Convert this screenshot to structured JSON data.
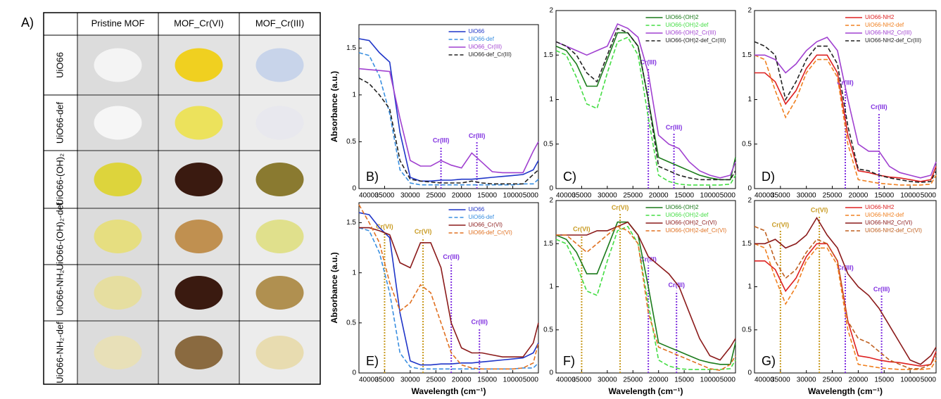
{
  "table": {
    "label": "A)",
    "header": [
      "Pristine MOF",
      "MOF_Cr(VI)",
      "MOF_Cr(III)"
    ],
    "rows": [
      "UiO66",
      "UiO66-def",
      "UiO66-(OH)₂",
      "UiO66-(OH)₂-def",
      "UiO66-NH₂",
      "UiO66-NH₂-def"
    ]
  },
  "chart_data": [
    {
      "type": "line",
      "label": "B)",
      "ylabel": "Absorbance (a.u.)",
      "x": [
        40000,
        38000,
        36000,
        34000,
        32000,
        30000,
        28000,
        26000,
        24000,
        22000,
        20000,
        18000,
        16000,
        14000,
        12000,
        10000,
        8000,
        6000,
        5000
      ],
      "xlim": [
        40000,
        5000
      ],
      "xticks": [
        40000,
        35000,
        30000,
        25000,
        20000,
        15000,
        10000,
        5000
      ],
      "ylim": [
        0,
        1.75
      ],
      "yticks": [
        0,
        0.5,
        1,
        1.5
      ],
      "series": [
        {
          "name": "UiO66",
          "color": "#1f35c8",
          "dash": false,
          "values": [
            1.6,
            1.58,
            1.45,
            1.35,
            0.6,
            0.12,
            0.08,
            0.08,
            0.09,
            0.09,
            0.1,
            0.1,
            0.11,
            0.12,
            0.13,
            0.14,
            0.15,
            0.2,
            0.3
          ]
        },
        {
          "name": "UiO66-def",
          "color": "#3a8fe0",
          "dash": true,
          "values": [
            1.45,
            1.42,
            1.2,
            0.8,
            0.2,
            0.06,
            0.04,
            0.04,
            0.04,
            0.04,
            0.04,
            0.04,
            0.04,
            0.04,
            0.04,
            0.04,
            0.05,
            0.05,
            0.1
          ]
        },
        {
          "name": "UiO66_Cr(III)",
          "color": "#a040d0",
          "dash": false,
          "values": [
            1.28,
            1.27,
            1.26,
            1.25,
            0.75,
            0.3,
            0.24,
            0.24,
            0.3,
            0.25,
            0.22,
            0.38,
            0.28,
            0.18,
            0.17,
            0.17,
            0.17,
            0.4,
            0.5
          ]
        },
        {
          "name": "UiO66-def_Cr(III)",
          "color": "#222222",
          "dash": true,
          "values": [
            1.18,
            1.12,
            1.0,
            0.85,
            0.3,
            0.1,
            0.08,
            0.07,
            0.06,
            0.06,
            0.06,
            0.08,
            0.06,
            0.05,
            0.05,
            0.05,
            0.05,
            0.15,
            0.2
          ]
        }
      ],
      "annotations": [
        {
          "text": "Cr(III)",
          "x": 24000,
          "y": 0.45,
          "color": "#8030e0"
        },
        {
          "text": "Cr(III)",
          "x": 17000,
          "y": 0.5,
          "color": "#8030e0"
        }
      ]
    },
    {
      "type": "line",
      "label": "C)",
      "x": [
        40000,
        38000,
        36000,
        34000,
        32000,
        30000,
        28000,
        26000,
        24000,
        22000,
        20000,
        18000,
        16000,
        14000,
        12000,
        10000,
        8000,
        6000,
        5000
      ],
      "xlim": [
        40000,
        5000
      ],
      "xticks": [
        40000,
        35000,
        30000,
        25000,
        20000,
        15000,
        10000,
        5000
      ],
      "ylim": [
        0,
        2
      ],
      "yticks": [
        0,
        0.5,
        1,
        1.5,
        2
      ],
      "series": [
        {
          "name": "UiO66-(OH)2",
          "color": "#1a7a1a",
          "dash": false,
          "values": [
            1.6,
            1.55,
            1.4,
            1.15,
            1.15,
            1.45,
            1.75,
            1.75,
            1.6,
            1.0,
            0.35,
            0.3,
            0.25,
            0.2,
            0.15,
            0.12,
            0.1,
            0.1,
            0.35
          ]
        },
        {
          "name": "UiO66-(OH)2-def",
          "color": "#44dd44",
          "dash": true,
          "values": [
            1.55,
            1.5,
            1.25,
            0.95,
            0.9,
            1.3,
            1.65,
            1.7,
            1.5,
            0.8,
            0.15,
            0.08,
            0.05,
            0.04,
            0.04,
            0.04,
            0.04,
            0.05,
            0.15
          ]
        },
        {
          "name": "UiO66-(OH)2_Cr(III)",
          "color": "#a040d0",
          "dash": false,
          "values": [
            1.65,
            1.6,
            1.55,
            1.5,
            1.55,
            1.6,
            1.85,
            1.8,
            1.7,
            1.3,
            0.6,
            0.5,
            0.45,
            0.3,
            0.2,
            0.15,
            0.12,
            0.15,
            0.3
          ]
        },
        {
          "name": "UiO66-(OH)2-def_Cr(III)",
          "color": "#222222",
          "dash": true,
          "values": [
            1.65,
            1.6,
            1.5,
            1.3,
            1.2,
            1.5,
            1.8,
            1.75,
            1.6,
            1.0,
            0.25,
            0.2,
            0.15,
            0.12,
            0.1,
            0.1,
            0.1,
            0.1,
            0.2
          ]
        }
      ],
      "annotations": [
        {
          "text": "Cr(III)",
          "x": 22000,
          "y": 1.35,
          "color": "#8030e0"
        },
        {
          "text": "Cr(III)",
          "x": 17000,
          "y": 0.62,
          "color": "#8030e0"
        }
      ]
    },
    {
      "type": "line",
      "label": "D)",
      "x": [
        40000,
        38000,
        36000,
        34000,
        32000,
        30000,
        28000,
        26000,
        24000,
        22000,
        20000,
        18000,
        16000,
        14000,
        12000,
        10000,
        8000,
        6000,
        5000
      ],
      "xlim": [
        40000,
        5000
      ],
      "xticks": [
        40000,
        35000,
        30000,
        25000,
        20000,
        15000,
        10000,
        5000
      ],
      "ylim": [
        0,
        2
      ],
      "yticks": [
        0,
        0.5,
        1,
        1.5,
        2
      ],
      "series": [
        {
          "name": "UiO66-NH2",
          "color": "#dd2020",
          "dash": false,
          "values": [
            1.3,
            1.3,
            1.2,
            0.95,
            1.1,
            1.35,
            1.5,
            1.5,
            1.3,
            0.6,
            0.2,
            0.18,
            0.15,
            0.13,
            0.12,
            0.1,
            0.08,
            0.1,
            0.25
          ]
        },
        {
          "name": "UiO66-NH2-def",
          "color": "#f08020",
          "dash": true,
          "values": [
            1.5,
            1.45,
            1.1,
            0.8,
            1.0,
            1.3,
            1.45,
            1.45,
            1.25,
            0.5,
            0.1,
            0.08,
            0.06,
            0.05,
            0.04,
            0.04,
            0.04,
            0.05,
            0.15
          ]
        },
        {
          "name": "UiO66-NH2_Cr(III)",
          "color": "#a040d0",
          "dash": false,
          "values": [
            1.5,
            1.5,
            1.45,
            1.3,
            1.4,
            1.55,
            1.65,
            1.7,
            1.55,
            1.0,
            0.5,
            0.42,
            0.42,
            0.25,
            0.18,
            0.15,
            0.12,
            0.15,
            0.3
          ]
        },
        {
          "name": "UiO66-NH2-def_Cr(III)",
          "color": "#222222",
          "dash": true,
          "values": [
            1.65,
            1.6,
            1.5,
            1.0,
            1.2,
            1.45,
            1.6,
            1.6,
            1.4,
            0.7,
            0.22,
            0.2,
            0.15,
            0.12,
            0.1,
            0.08,
            0.07,
            0.08,
            0.2
          ]
        }
      ],
      "annotations": [
        {
          "text": "Cr(III)",
          "x": 22500,
          "y": 1.12,
          "color": "#8030e0"
        },
        {
          "text": "Cr(III)",
          "x": 16000,
          "y": 0.85,
          "color": "#8030e0"
        }
      ]
    },
    {
      "type": "line",
      "label": "E)",
      "ylabel": "Absorbance (a.u.)",
      "xlabel": "Wavelength (cm⁻¹)",
      "x": [
        40000,
        38000,
        36000,
        34000,
        32000,
        30000,
        28000,
        26000,
        24000,
        22000,
        20000,
        18000,
        16000,
        14000,
        12000,
        10000,
        8000,
        6000,
        5000
      ],
      "xlim": [
        40000,
        5000
      ],
      "xticks": [
        40000,
        35000,
        30000,
        25000,
        20000,
        15000,
        10000,
        5000
      ],
      "ylim": [
        0,
        1.7
      ],
      "yticks": [
        0,
        0.5,
        1,
        1.5
      ],
      "series": [
        {
          "name": "UiO66",
          "color": "#1f35c8",
          "dash": false,
          "values": [
            1.6,
            1.58,
            1.45,
            1.35,
            0.6,
            0.12,
            0.08,
            0.08,
            0.09,
            0.09,
            0.1,
            0.1,
            0.11,
            0.12,
            0.13,
            0.14,
            0.15,
            0.2,
            0.3
          ]
        },
        {
          "name": "UiO66-def",
          "color": "#3a8fe0",
          "dash": true,
          "values": [
            1.45,
            1.42,
            1.2,
            0.8,
            0.2,
            0.06,
            0.04,
            0.04,
            0.04,
            0.04,
            0.04,
            0.04,
            0.04,
            0.04,
            0.04,
            0.04,
            0.05,
            0.05,
            0.1
          ]
        },
        {
          "name": "UiO66_Cr(VI)",
          "color": "#8b1a1a",
          "dash": false,
          "values": [
            1.45,
            1.45,
            1.42,
            1.38,
            1.1,
            1.05,
            1.3,
            1.3,
            1.05,
            0.5,
            0.25,
            0.2,
            0.2,
            0.18,
            0.16,
            0.16,
            0.16,
            0.3,
            0.5
          ]
        },
        {
          "name": "UiO66-def_Cr(VI)",
          "color": "#e07020",
          "dash": true,
          "values": [
            1.68,
            1.5,
            1.3,
            0.9,
            0.62,
            0.7,
            0.88,
            0.8,
            0.5,
            0.2,
            0.08,
            0.05,
            0.04,
            0.04,
            0.04,
            0.04,
            0.05,
            0.1,
            0.3
          ]
        }
      ],
      "annotations": [
        {
          "text": "Cr(VI)",
          "x": 35000,
          "y": 1.4,
          "color": "#c89a20"
        },
        {
          "text": "Cr(VI)",
          "x": 27500,
          "y": 1.35,
          "color": "#c89a20"
        },
        {
          "text": "Cr(III)",
          "x": 22000,
          "y": 1.1,
          "color": "#8030e0"
        },
        {
          "text": "Cr(III)",
          "x": 16500,
          "y": 0.45,
          "color": "#8030e0"
        }
      ]
    },
    {
      "type": "line",
      "label": "F)",
      "xlabel": "Wavelength (cm⁻¹)",
      "x": [
        40000,
        38000,
        36000,
        34000,
        32000,
        30000,
        28000,
        26000,
        24000,
        22000,
        20000,
        18000,
        16000,
        14000,
        12000,
        10000,
        8000,
        6000,
        5000
      ],
      "xlim": [
        40000,
        5000
      ],
      "xticks": [
        40000,
        35000,
        30000,
        25000,
        20000,
        15000,
        10000,
        5000
      ],
      "ylim": [
        0,
        2
      ],
      "yticks": [
        0,
        0.5,
        1,
        1.5,
        2
      ],
      "series": [
        {
          "name": "UiO66-(OH)2",
          "color": "#1a7a1a",
          "dash": false,
          "values": [
            1.6,
            1.55,
            1.4,
            1.15,
            1.15,
            1.45,
            1.75,
            1.75,
            1.6,
            1.0,
            0.35,
            0.3,
            0.25,
            0.2,
            0.15,
            0.12,
            0.1,
            0.1,
            0.35
          ]
        },
        {
          "name": "UiO66-(OH)2-def",
          "color": "#44dd44",
          "dash": true,
          "values": [
            1.55,
            1.5,
            1.25,
            0.95,
            0.9,
            1.3,
            1.65,
            1.7,
            1.5,
            0.8,
            0.15,
            0.08,
            0.05,
            0.04,
            0.04,
            0.04,
            0.04,
            0.05,
            0.15
          ]
        },
        {
          "name": "UiO66-(OH)2_Cr(VI)",
          "color": "#8b1a1a",
          "dash": false,
          "values": [
            1.6,
            1.6,
            1.6,
            1.6,
            1.65,
            1.65,
            1.7,
            1.75,
            1.6,
            1.35,
            1.25,
            1.15,
            1.0,
            0.7,
            0.4,
            0.2,
            0.15,
            0.3,
            0.4
          ]
        },
        {
          "name": "UiO66-(OH)2-def_Cr(VI)",
          "color": "#e07020",
          "dash": true,
          "values": [
            1.6,
            1.6,
            1.5,
            1.4,
            1.5,
            1.6,
            1.7,
            1.65,
            1.5,
            0.7,
            0.3,
            0.25,
            0.2,
            0.15,
            0.1,
            0.05,
            0.03,
            0.1,
            0.2
          ]
        }
      ],
      "annotations": [
        {
          "text": "Cr(VI)",
          "x": 35000,
          "y": 1.6,
          "color": "#c89a20"
        },
        {
          "text": "Cr(VI)",
          "x": 27500,
          "y": 1.85,
          "color": "#c89a20"
        },
        {
          "text": "Cr(III)",
          "x": 22000,
          "y": 1.25,
          "color": "#8030e0"
        },
        {
          "text": "Cr(III)",
          "x": 16500,
          "y": 0.95,
          "color": "#8030e0"
        }
      ]
    },
    {
      "type": "line",
      "label": "G)",
      "xlabel": "Wavelength (cm⁻¹)",
      "x": [
        40000,
        38000,
        36000,
        34000,
        32000,
        30000,
        28000,
        26000,
        24000,
        22000,
        20000,
        18000,
        16000,
        14000,
        12000,
        10000,
        8000,
        6000,
        5000
      ],
      "xlim": [
        40000,
        5000
      ],
      "xticks": [
        40000,
        35000,
        30000,
        25000,
        20000,
        15000,
        10000,
        5000
      ],
      "ylim": [
        0,
        2
      ],
      "yticks": [
        0,
        0.5,
        1,
        1.5,
        2
      ],
      "series": [
        {
          "name": "UiO66-NH2",
          "color": "#dd2020",
          "dash": false,
          "values": [
            1.3,
            1.3,
            1.2,
            0.95,
            1.1,
            1.35,
            1.5,
            1.5,
            1.3,
            0.6,
            0.2,
            0.18,
            0.15,
            0.13,
            0.12,
            0.1,
            0.08,
            0.1,
            0.25
          ]
        },
        {
          "name": "UiO66-NH2-def",
          "color": "#f08020",
          "dash": true,
          "values": [
            1.5,
            1.45,
            1.1,
            0.8,
            1.0,
            1.3,
            1.45,
            1.45,
            1.25,
            0.5,
            0.1,
            0.08,
            0.06,
            0.05,
            0.04,
            0.04,
            0.04,
            0.05,
            0.15
          ]
        },
        {
          "name": "UiO66-NH2_Cr(VI)",
          "color": "#8b1a1a",
          "dash": false,
          "values": [
            1.5,
            1.5,
            1.55,
            1.45,
            1.5,
            1.6,
            1.8,
            1.6,
            1.45,
            1.15,
            1.0,
            0.9,
            0.75,
            0.55,
            0.35,
            0.15,
            0.1,
            0.2,
            0.3
          ]
        },
        {
          "name": "UiO66-NH2-def_Cr(VI)",
          "color": "#c06020",
          "dash": true,
          "values": [
            1.7,
            1.65,
            1.3,
            1.1,
            1.2,
            1.4,
            1.55,
            1.5,
            1.3,
            0.6,
            0.4,
            0.35,
            0.25,
            0.15,
            0.1,
            0.05,
            0.05,
            0.1,
            0.2
          ]
        }
      ],
      "annotations": [
        {
          "text": "Cr(VI)",
          "x": 35000,
          "y": 1.65,
          "color": "#c89a20"
        },
        {
          "text": "Cr(VI)",
          "x": 27500,
          "y": 1.82,
          "color": "#c89a20"
        },
        {
          "text": "Cr(III)",
          "x": 22500,
          "y": 1.15,
          "color": "#8030e0"
        },
        {
          "text": "Cr(III)",
          "x": 15500,
          "y": 0.9,
          "color": "#8030e0"
        }
      ]
    }
  ]
}
